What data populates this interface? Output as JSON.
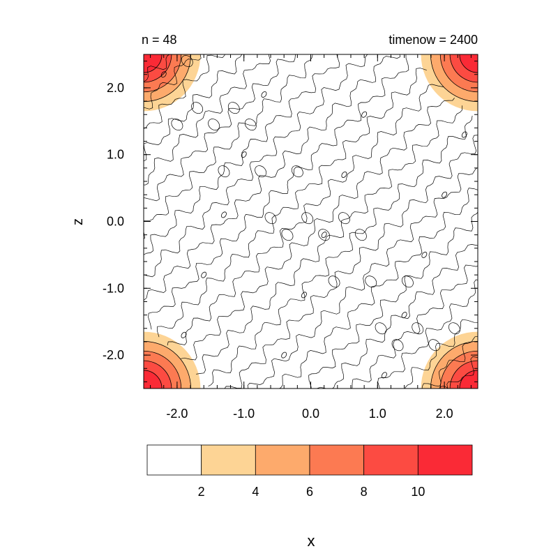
{
  "chart_data": {
    "type": "heatmap",
    "title_left": "n = 48",
    "title_right": "timenow = 2400",
    "xlabel": "x",
    "ylabel": "z",
    "xlim": [
      -2.5,
      2.5
    ],
    "ylim": [
      -2.5,
      2.5
    ],
    "x_ticks": [
      {
        "value": -2,
        "label": "-2.0"
      },
      {
        "value": -1,
        "label": "-1.0"
      },
      {
        "value": 0,
        "label": "0.0"
      },
      {
        "value": 1,
        "label": "1.0"
      },
      {
        "value": 2,
        "label": "2.0"
      }
    ],
    "y_ticks": [
      {
        "value": 2,
        "label": "2.0"
      },
      {
        "value": 1,
        "label": "1.0"
      },
      {
        "value": 0,
        "label": "0.0"
      },
      {
        "value": -1,
        "label": "-1.0"
      },
      {
        "value": -2,
        "label": "-2.0"
      }
    ],
    "colorbar": {
      "levels": [
        2,
        4,
        6,
        8,
        10
      ],
      "tick_labels": [
        "2",
        "4",
        "6",
        "8",
        "10"
      ],
      "colors": [
        "#ffffff",
        "#fdd495",
        "#fdaa6c",
        "#fc7a52",
        "#fc4b42",
        "#fa2a36"
      ]
    },
    "corner_maxima": [
      {
        "x": -2.5,
        "y": 2.5,
        "peak": 11
      },
      {
        "x": 2.5,
        "y": 2.5,
        "peak": 11
      },
      {
        "x": -2.5,
        "y": -2.5,
        "peak": 11
      },
      {
        "x": 2.5,
        "y": -2.5,
        "peak": 11
      }
    ],
    "corner_radius": 0.85,
    "grid": false
  }
}
